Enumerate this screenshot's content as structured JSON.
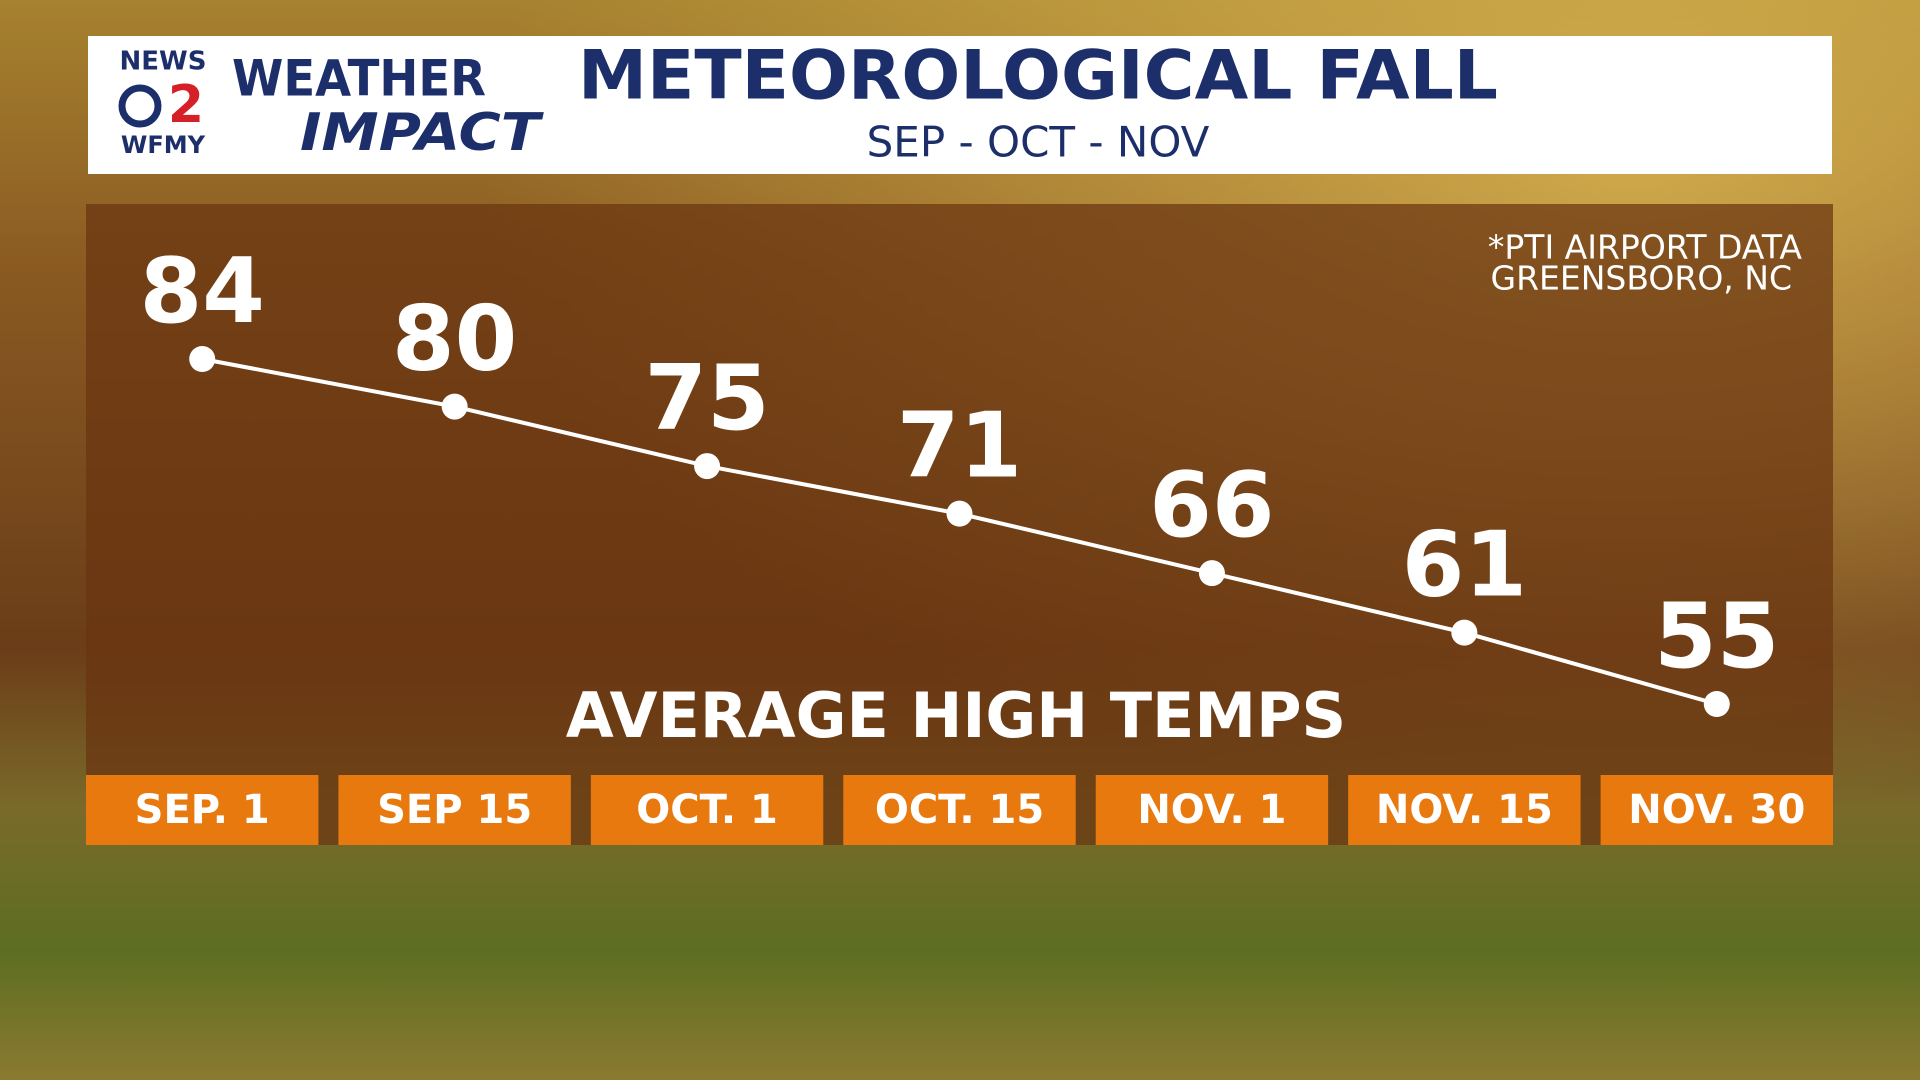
{
  "brand": {
    "news": "NEWS",
    "number": "2",
    "station": "WFMY",
    "weather": "WEATHER",
    "impact": "IMPACT"
  },
  "chart_data": {
    "type": "line",
    "title": "METEOROLOGICAL FALL",
    "subtitle": "SEP - OCT - NOV",
    "annotation": "AVERAGE HIGH TEMPS",
    "note": [
      "*PTI AIRPORT DATA",
      "GREENSBORO, NC"
    ],
    "categories": [
      "SEP. 1",
      "SEP 15",
      "OCT. 1",
      "OCT. 15",
      "NOV. 1",
      "NOV. 15",
      "NOV. 30"
    ],
    "values": [
      84,
      80,
      75,
      71,
      66,
      61,
      55
    ],
    "color": "#ffffff",
    "label_color": "#e8790e"
  }
}
